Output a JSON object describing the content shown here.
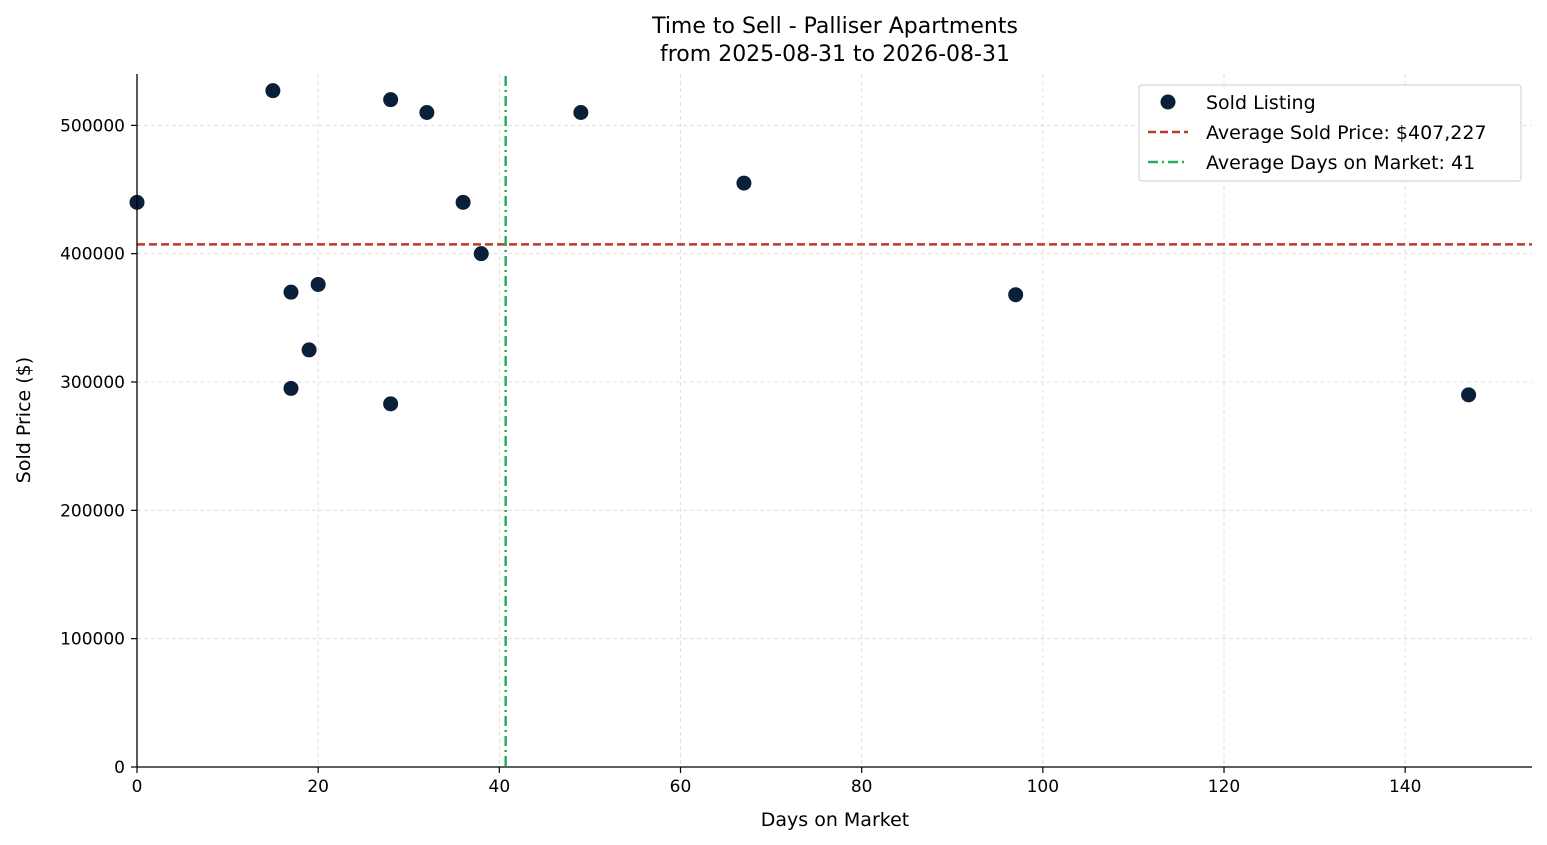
{
  "colors": {
    "marker": "#0b1f3a",
    "avg_price_line": "#c0392b",
    "avg_days_line": "#27ae60",
    "grid": "#d9d9d9",
    "axis": "#000000"
  },
  "chart_data": {
    "type": "scatter",
    "title": "Time to Sell - Palliser Apartments",
    "subtitle": "from 2025-08-31 to 2026-08-31",
    "xlabel": "Days on Market",
    "ylabel": "Sold Price ($)",
    "xlim": [
      0,
      154
    ],
    "ylim": [
      0,
      540000
    ],
    "xticks": [
      0,
      20,
      40,
      60,
      80,
      100,
      120,
      140
    ],
    "yticks": [
      0,
      100000,
      200000,
      300000,
      400000,
      500000
    ],
    "grid": true,
    "legend_position": "top-right",
    "series": [
      {
        "name": "Sold Listing",
        "points": [
          {
            "x": 0,
            "y": 440000
          },
          {
            "x": 15,
            "y": 527000
          },
          {
            "x": 17,
            "y": 370000
          },
          {
            "x": 17,
            "y": 295000
          },
          {
            "x": 19,
            "y": 325000
          },
          {
            "x": 20,
            "y": 376000
          },
          {
            "x": 28,
            "y": 520000
          },
          {
            "x": 28,
            "y": 283000
          },
          {
            "x": 32,
            "y": 510000
          },
          {
            "x": 36,
            "y": 440000
          },
          {
            "x": 38,
            "y": 400000
          },
          {
            "x": 49,
            "y": 510000
          },
          {
            "x": 67,
            "y": 455000
          },
          {
            "x": 97,
            "y": 368000
          },
          {
            "x": 147,
            "y": 290000
          }
        ]
      }
    ],
    "reference_lines": [
      {
        "name": "Average Sold Price: $407,227",
        "orientation": "horizontal",
        "value": 407227,
        "style": "dashed"
      },
      {
        "name": "Average Days on Market: 41",
        "orientation": "vertical",
        "value": 40.7,
        "style": "dashdot"
      }
    ]
  }
}
